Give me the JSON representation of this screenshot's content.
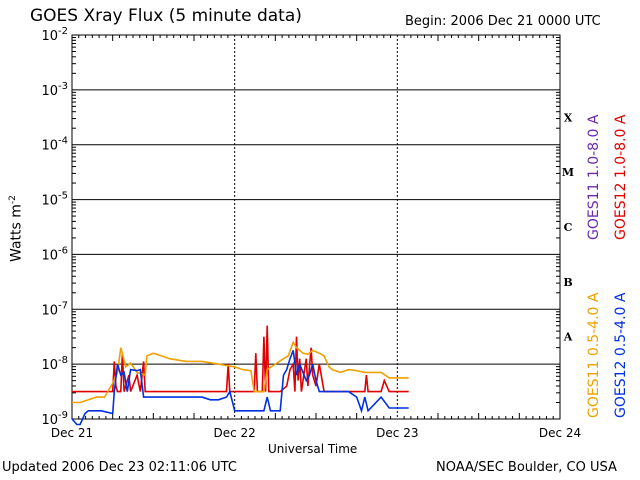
{
  "header": {
    "title": "GOES Xray Flux (5 minute data)",
    "begin": "Begin:  2006 Dec 21 0000 UTC"
  },
  "footer": {
    "updated": "Updated 2006 Dec 23 02:11:06 UTC",
    "credit": "NOAA/SEC Boulder, CO USA"
  },
  "colors": {
    "goes11_long": "#6a2bb0",
    "goes12_long": "#e00000",
    "goes11_short": "#f0a000",
    "goes12_short": "#0030e0",
    "grid": "#000000"
  },
  "chart_data": {
    "type": "line",
    "title": "GOES Xray Flux (5 minute data)",
    "xlabel": "Universal Time",
    "ylabel": "Watts m",
    "ylabel_superscript": "-2",
    "ylog": true,
    "ylim_exp": [
      -9,
      -2
    ],
    "y_ticks": [
      {
        "exp": -2,
        "label": "10",
        "sup": "-2"
      },
      {
        "exp": -3,
        "label": "10",
        "sup": "-3"
      },
      {
        "exp": -4,
        "label": "10",
        "sup": "-4"
      },
      {
        "exp": -5,
        "label": "10",
        "sup": "-5"
      },
      {
        "exp": -6,
        "label": "10",
        "sup": "-6"
      },
      {
        "exp": -7,
        "label": "10",
        "sup": "-7"
      },
      {
        "exp": -8,
        "label": "10",
        "sup": "-8"
      },
      {
        "exp": -9,
        "label": "10",
        "sup": "-9"
      }
    ],
    "x_ticks": [
      "Dec 21",
      "Dec 22",
      "Dec 23",
      "Dec 24"
    ],
    "xlim_days": [
      0,
      3
    ],
    "flare_classes": [
      {
        "label": "X",
        "exp": -3.5
      },
      {
        "label": "M",
        "exp": -4.5
      },
      {
        "label": "C",
        "exp": -5.5
      },
      {
        "label": "B",
        "exp": -6.5
      },
      {
        "label": "A",
        "exp": -7.5
      }
    ],
    "series": [
      {
        "name": "GOES11 1.0-8.0 A",
        "key": "goes11_long",
        "points": []
      },
      {
        "name": "GOES12 1.0-8.0 A",
        "key": "goes12_long",
        "points": [
          [
            0.0,
            -8.5
          ],
          [
            0.2,
            -8.5
          ],
          [
            0.25,
            -8.5
          ],
          [
            0.26,
            -7.95
          ],
          [
            0.27,
            -8.4
          ],
          [
            0.28,
            -8.5
          ],
          [
            0.3,
            -8.5
          ],
          [
            0.31,
            -7.8
          ],
          [
            0.32,
            -8.5
          ],
          [
            0.35,
            -8.2
          ],
          [
            0.36,
            -8.5
          ],
          [
            0.4,
            -8.2
          ],
          [
            0.42,
            -8.5
          ],
          [
            0.44,
            -7.95
          ],
          [
            0.45,
            -8.5
          ],
          [
            0.6,
            -8.5
          ],
          [
            0.95,
            -8.5
          ],
          [
            0.96,
            -8.0
          ],
          [
            0.97,
            -8.5
          ],
          [
            1.0,
            -8.5
          ],
          [
            1.12,
            -8.5
          ],
          [
            1.13,
            -7.8
          ],
          [
            1.14,
            -8.5
          ],
          [
            1.17,
            -8.5
          ],
          [
            1.18,
            -7.5
          ],
          [
            1.19,
            -8.5
          ],
          [
            1.2,
            -7.3
          ],
          [
            1.21,
            -8.5
          ],
          [
            1.28,
            -8.5
          ],
          [
            1.32,
            -8.4
          ],
          [
            1.34,
            -8.1
          ],
          [
            1.36,
            -8.0
          ],
          [
            1.37,
            -8.5
          ],
          [
            1.38,
            -7.5
          ],
          [
            1.39,
            -8.3
          ],
          [
            1.4,
            -7.9
          ],
          [
            1.41,
            -8.5
          ],
          [
            1.44,
            -7.9
          ],
          [
            1.45,
            -8.4
          ],
          [
            1.47,
            -7.7
          ],
          [
            1.48,
            -8.2
          ],
          [
            1.5,
            -8.4
          ],
          [
            1.52,
            -8.0
          ],
          [
            1.55,
            -8.5
          ],
          [
            1.8,
            -8.5
          ],
          [
            1.81,
            -8.2
          ],
          [
            1.82,
            -8.5
          ],
          [
            1.9,
            -8.5
          ],
          [
            1.92,
            -8.3
          ],
          [
            1.95,
            -8.5
          ],
          [
            2.07,
            -8.5
          ]
        ]
      },
      {
        "name": "GOES11 0.5-4.0 A",
        "key": "goes11_short",
        "points": [
          [
            0.0,
            -8.7
          ],
          [
            0.05,
            -8.7
          ],
          [
            0.1,
            -8.65
          ],
          [
            0.15,
            -8.6
          ],
          [
            0.2,
            -8.6
          ],
          [
            0.25,
            -8.35
          ],
          [
            0.28,
            -8.15
          ],
          [
            0.3,
            -7.7
          ],
          [
            0.33,
            -8.05
          ],
          [
            0.36,
            -7.98
          ],
          [
            0.4,
            -8.15
          ],
          [
            0.45,
            -8.2
          ],
          [
            0.46,
            -7.85
          ],
          [
            0.5,
            -7.8
          ],
          [
            0.55,
            -7.85
          ],
          [
            0.6,
            -7.9
          ],
          [
            0.7,
            -7.95
          ],
          [
            0.8,
            -7.95
          ],
          [
            0.9,
            -8.0
          ],
          [
            1.0,
            -8.05
          ],
          [
            1.05,
            -8.1
          ],
          [
            1.1,
            -8.12
          ],
          [
            1.12,
            -8.5
          ],
          [
            1.18,
            -8.5
          ],
          [
            1.2,
            -8.1
          ],
          [
            1.25,
            -8.0
          ],
          [
            1.3,
            -7.9
          ],
          [
            1.33,
            -7.85
          ],
          [
            1.36,
            -7.6
          ],
          [
            1.38,
            -7.7
          ],
          [
            1.4,
            -7.75
          ],
          [
            1.42,
            -7.8
          ],
          [
            1.45,
            -7.82
          ],
          [
            1.48,
            -7.75
          ],
          [
            1.52,
            -7.8
          ],
          [
            1.55,
            -7.85
          ],
          [
            1.58,
            -8.05
          ],
          [
            1.6,
            -8.1
          ],
          [
            1.65,
            -8.15
          ],
          [
            1.7,
            -8.1
          ],
          [
            1.75,
            -8.12
          ],
          [
            1.8,
            -8.15
          ],
          [
            1.85,
            -8.15
          ],
          [
            1.9,
            -8.15
          ],
          [
            1.95,
            -8.25
          ],
          [
            2.0,
            -8.25
          ],
          [
            2.07,
            -8.25
          ]
        ]
      },
      {
        "name": "GOES12 0.5-4.0 A",
        "key": "goes12_short",
        "points": [
          [
            0.0,
            -9.0
          ],
          [
            0.03,
            -9.1
          ],
          [
            0.05,
            -9.1
          ],
          [
            0.08,
            -8.9
          ],
          [
            0.1,
            -8.85
          ],
          [
            0.18,
            -8.85
          ],
          [
            0.25,
            -8.9
          ],
          [
            0.26,
            -8.5
          ],
          [
            0.28,
            -8.0
          ],
          [
            0.3,
            -8.2
          ],
          [
            0.32,
            -8.15
          ],
          [
            0.34,
            -8.5
          ],
          [
            0.36,
            -8.1
          ],
          [
            0.4,
            -8.12
          ],
          [
            0.42,
            -8.1
          ],
          [
            0.44,
            -8.6
          ],
          [
            0.6,
            -8.6
          ],
          [
            0.7,
            -8.6
          ],
          [
            0.8,
            -8.6
          ],
          [
            0.85,
            -8.65
          ],
          [
            0.9,
            -8.65
          ],
          [
            0.95,
            -8.6
          ],
          [
            0.97,
            -8.5
          ],
          [
            1.0,
            -8.85
          ],
          [
            1.05,
            -8.85
          ],
          [
            1.1,
            -8.85
          ],
          [
            1.15,
            -8.85
          ],
          [
            1.18,
            -8.85
          ],
          [
            1.2,
            -8.6
          ],
          [
            1.22,
            -8.85
          ],
          [
            1.28,
            -8.85
          ],
          [
            1.3,
            -8.2
          ],
          [
            1.32,
            -8.1
          ],
          [
            1.34,
            -7.9
          ],
          [
            1.36,
            -7.75
          ],
          [
            1.38,
            -8.2
          ],
          [
            1.4,
            -8.0
          ],
          [
            1.42,
            -8.15
          ],
          [
            1.44,
            -8.3
          ],
          [
            1.46,
            -8.2
          ],
          [
            1.48,
            -8.0
          ],
          [
            1.5,
            -8.3
          ],
          [
            1.52,
            -8.5
          ],
          [
            1.55,
            -8.5
          ],
          [
            1.58,
            -8.5
          ],
          [
            1.6,
            -8.5
          ],
          [
            1.7,
            -8.5
          ],
          [
            1.75,
            -8.6
          ],
          [
            1.78,
            -8.85
          ],
          [
            1.8,
            -8.6
          ],
          [
            1.82,
            -8.85
          ],
          [
            1.9,
            -8.6
          ],
          [
            1.95,
            -8.8
          ],
          [
            2.0,
            -8.8
          ],
          [
            2.07,
            -8.8
          ]
        ]
      }
    ]
  }
}
